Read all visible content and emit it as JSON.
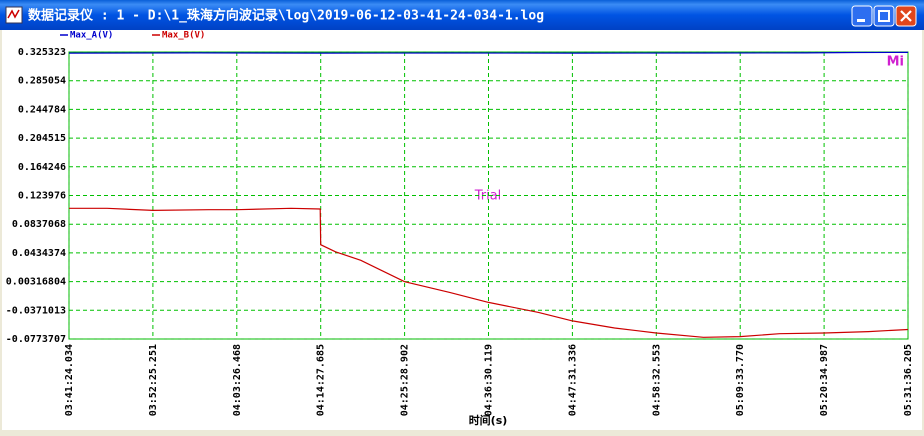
{
  "window": {
    "title": "数据记录仪 : 1 - D:\\1_珠海方向波记录\\log\\2019-06-12-03-41-24-034-1.log",
    "watermark": "Trial",
    "corner_mark": "Mi"
  },
  "chart_data": {
    "type": "line",
    "x_label": "时间(s)",
    "xlim": [
      0,
      6612.171
    ],
    "xticks": [
      {
        "value": 0,
        "label": "03:41:24.034"
      },
      {
        "value": 661.217,
        "label": "03:52:25.251"
      },
      {
        "value": 1322.434,
        "label": "04:03:26.468"
      },
      {
        "value": 1983.651,
        "label": "04:14:27.685"
      },
      {
        "value": 2644.868,
        "label": "04:25:28.902"
      },
      {
        "value": 3306.085,
        "label": "04:36:30.119"
      },
      {
        "value": 3967.302,
        "label": "04:47:31.336"
      },
      {
        "value": 4628.519,
        "label": "04:58:32.553"
      },
      {
        "value": 5289.736,
        "label": "05:09:33.770"
      },
      {
        "value": 5950.953,
        "label": "05:20:34.987"
      },
      {
        "value": 6612.171,
        "label": "05:31:36.205"
      }
    ],
    "ylim": [
      -0.0773707,
      0.325323
    ],
    "yticks": [
      -0.0773707,
      -0.0371013,
      0.00316804,
      0.0434374,
      0.0837068,
      0.123976,
      0.164246,
      0.204515,
      0.244784,
      0.285054,
      0.325323
    ],
    "grid": true,
    "series": [
      {
        "name": "Max_A(V)",
        "color": "#0000cc",
        "x": [
          0,
          1000,
          2000,
          3000,
          4000,
          5000,
          5800,
          6200,
          6612.171
        ],
        "values": [
          0.3238,
          0.324,
          0.3238,
          0.3239,
          0.3238,
          0.3239,
          0.324,
          0.3246,
          0.3248
        ]
      },
      {
        "name": "Max_B(V)",
        "color": "#cc0000",
        "x": [
          0,
          300,
          661,
          1100,
          1322,
          1750,
          1980,
          1984,
          2100,
          2300,
          2645,
          3000,
          3306,
          3700,
          3967,
          4300,
          4628,
          5000,
          5289,
          5600,
          5951,
          6300,
          6612.171
        ],
        "values": [
          0.106,
          0.106,
          0.103,
          0.104,
          0.104,
          0.106,
          0.105,
          0.055,
          0.045,
          0.033,
          0.003,
          -0.012,
          -0.026,
          -0.04,
          -0.052,
          -0.062,
          -0.069,
          -0.075,
          -0.074,
          -0.07,
          -0.069,
          -0.067,
          -0.064
        ]
      }
    ]
  }
}
